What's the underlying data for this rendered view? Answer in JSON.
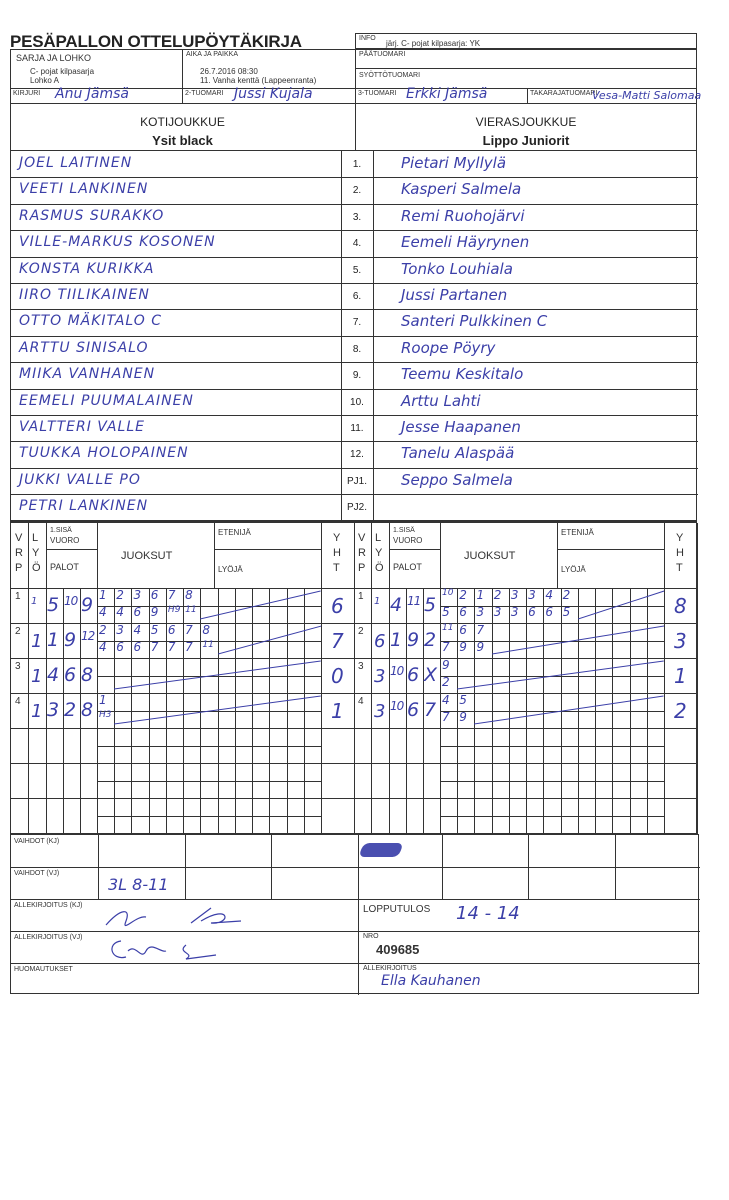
{
  "header": {
    "title": "PESÄPALLON OTTELUPÖYTÄKIRJA",
    "info_label": "INFO",
    "info_value": "järj. C- pojat kilpasarja: YK",
    "series_label": "SARJA JA LOHKO",
    "series_value_1": "C- pojat kilpasarja",
    "series_value_2": "Lohko A",
    "time_place_label": "AIKA JA PAIKKA",
    "time_value": "26.7.2016 08:30",
    "place_value": "11. Vanha kenttä (Lappeenranta)",
    "head_referee_label": "PÄÄTUOMARI",
    "pitch_referee_label": "SYÖTTÖTUOMARI",
    "scorer_label": "KIRJURI",
    "scorer_value": "Anu Jämsä",
    "referee2_label": "2-TUOMARI",
    "referee2_value": "Jussi Kujala",
    "referee3_label": "3-TUOMARI",
    "referee3_value": "Erkki Jämsä",
    "back_referee_label": "TAKARAJATUOMARI",
    "back_referee_value": "Vesa-Matti Salomaa"
  },
  "home": {
    "label": "KOTIJOUKKUE",
    "name": "Ysit black",
    "players": [
      "JOEL LAITINEN",
      "VEETI LANKINEN",
      "RASMUS SURAKKO",
      "VILLE-MARKUS KOSONEN",
      "KONSTA KURIKKA",
      "IIRO TIILIKAINEN",
      "OTTO MÄKITALO   C",
      "ARTTU SINISALO",
      "MIIKA VANHANEN",
      "EEMELI PUUMALAINEN",
      "VALTTERI VALLE",
      "TUUKKA HOLOPAINEN",
      "JUKKI VALLE  PO",
      "PETRI LANKINEN"
    ]
  },
  "away": {
    "label": "VIERASJOUKKUE",
    "name": "Lippo Juniorit",
    "players": [
      "Pietari Myllylä",
      "Kasperi Salmela",
      "Remi Ruohojärvi",
      "Eemeli Häyrynen",
      "Tonko Louhiala",
      "Jussi Partanen",
      "Santeri Pulkkinen   C",
      "Roope Pöyry",
      "Teemu Keskitalo",
      "Arttu Lahti",
      "Jesse Haapanen",
      "Tanelu Alaspää",
      "Seppo Salmela",
      ""
    ]
  },
  "numbers": [
    "1.",
    "2.",
    "3.",
    "4.",
    "5.",
    "6.",
    "7.",
    "8.",
    "9.",
    "10.",
    "11.",
    "12.",
    "PJ1.",
    "PJ2."
  ],
  "scoring_headers": {
    "v": "V",
    "r": "R",
    "p": "P",
    "l": "L",
    "y": "Y",
    "o": "Ö",
    "first_inning": "1.SISÄ",
    "turn": "VUORO",
    "outs": "PALOT",
    "runs": "JUOKSUT",
    "advancer": "ETENIJÄ",
    "batter": "LYÖJÄ",
    "yht_y": "Y",
    "yht_h": "H",
    "yht_t": "T"
  },
  "home_innings": [
    {
      "vrp": "1",
      "lyo": "1",
      "palot": [
        "5",
        "10",
        "9"
      ],
      "top": [
        "1",
        "2",
        "3",
        "6",
        "7",
        "8"
      ],
      "bottom": [
        "4",
        "4",
        "6",
        "9",
        "H9",
        "11"
      ],
      "yht": "6"
    },
    {
      "vrp": "2",
      "lyo": "1",
      "palot": [
        "1",
        "9",
        "12"
      ],
      "top": [
        "2",
        "3",
        "4",
        "5",
        "6",
        "7",
        "8"
      ],
      "bottom": [
        "4",
        "6",
        "6",
        "7",
        "7",
        "7",
        "11"
      ],
      "yht": "7"
    },
    {
      "vrp": "3",
      "lyo": "1",
      "palot": [
        "4",
        "6",
        "8"
      ],
      "top": [],
      "bottom": [],
      "yht": "0"
    },
    {
      "vrp": "4",
      "lyo": "1",
      "palot": [
        "3",
        "2",
        "8"
      ],
      "top": [
        "1"
      ],
      "bottom": [
        "H3"
      ],
      "yht": "1"
    }
  ],
  "away_innings": [
    {
      "vrp": "1",
      "lyo": "1",
      "palot": [
        "4",
        "11",
        "5"
      ],
      "top": [
        "10",
        "2",
        "1",
        "2",
        "3",
        "3",
        "4",
        "2"
      ],
      "bottom": [
        "5",
        "6",
        "3",
        "3",
        "3",
        "6",
        "6",
        "5"
      ],
      "yht": "8"
    },
    {
      "vrp": "2",
      "lyo": "6",
      "palot": [
        "1",
        "9",
        "2"
      ],
      "top": [
        "11",
        "6",
        "7"
      ],
      "bottom": [
        "7",
        "9",
        "9"
      ],
      "yht": "3"
    },
    {
      "vrp": "3",
      "lyo": "3",
      "palot": [
        "10",
        "6",
        "X"
      ],
      "top": [
        "9"
      ],
      "bottom": [
        "2"
      ],
      "yht": "1"
    },
    {
      "vrp": "4",
      "lyo": "3",
      "palot": [
        "10",
        "6",
        "7"
      ],
      "top": [
        "4",
        "5"
      ],
      "bottom": [
        "7",
        "9"
      ],
      "yht": "2"
    }
  ],
  "footer": {
    "subs_home_label": "VAIHDOT (KJ)",
    "subs_away_label": "VAIHDOT (VJ)",
    "subs_away_value": "3L 8-11",
    "sign_home_label": "ALLEKIRJOITUS (KJ)",
    "sign_away_label": "ALLEKIRJOITUS (VJ)",
    "result_label": "LOPPUTULOS",
    "result_value": "14 - 14",
    "nro_label": "NRO",
    "nro_value": "409685",
    "notes_label": "HUOMAUTUKSET",
    "signature_label": "ALLEKIRJOITUS",
    "signature_value": "Ella Kauhanen"
  },
  "colors": {
    "ink": "#3b3fa8",
    "lines": "#333333"
  }
}
